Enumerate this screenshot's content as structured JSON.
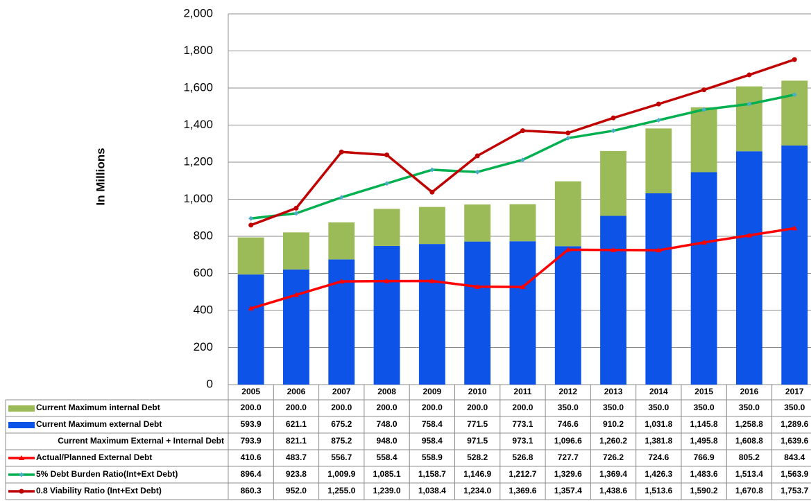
{
  "chart_data": {
    "type": "bar",
    "y_label": "In Millions",
    "categories": [
      "2005",
      "2006",
      "2007",
      "2008",
      "2009",
      "2010",
      "2011",
      "2012",
      "2013",
      "2014",
      "2015",
      "2016",
      "2017"
    ],
    "ylim": [
      0,
      2000
    ],
    "yticks": [
      0,
      200,
      400,
      600,
      800,
      {
        "value": 1000,
        "label": "1,000"
      },
      {
        "value": 1200,
        "label": "1,200"
      },
      {
        "value": 1400,
        "label": "1,400"
      },
      {
        "value": 1600,
        "label": "1,600"
      },
      {
        "value": 1800,
        "label": "1,800"
      },
      {
        "value": 2000,
        "label": "2,000"
      }
    ],
    "grid": true,
    "series": [
      {
        "name": "Current Maximum internal Debt",
        "type": "bar",
        "stack": "top",
        "color": "#9bbb59",
        "values": [
          200,
          200,
          200,
          200,
          200,
          200,
          200,
          350,
          350,
          350,
          350,
          350,
          350
        ],
        "value_labels": [
          "200.0",
          "200.0",
          "200.0",
          "200.0",
          "200.0",
          "200.0",
          "200.0",
          "350.0",
          "350.0",
          "350.0",
          "350.0",
          "350.0",
          "350.0"
        ]
      },
      {
        "name": "Current Maximum external Debt",
        "type": "bar",
        "stack": "base",
        "color": "#0d53e8",
        "values": [
          593.9,
          621.1,
          675.2,
          748.0,
          758.4,
          771.5,
          773.1,
          746.6,
          910.2,
          1031.8,
          1145.8,
          1258.8,
          1289.6
        ],
        "value_labels": [
          "593.9",
          "621.1",
          "675.2",
          "748.0",
          "758.4",
          "771.5",
          "773.1",
          "746.6",
          "910.2",
          "1,031.8",
          "1,145.8",
          "1,258.8",
          "1,289.6"
        ]
      },
      {
        "name": "Current Maximum External + Internal Debt",
        "values": [
          793.9,
          821.1,
          875.2,
          948.0,
          958.4,
          971.5,
          973.1,
          1096.6,
          1260.2,
          1381.8,
          1495.8,
          1608.8,
          1639.6
        ],
        "value_labels": [
          "793.9",
          "821.1",
          "875.2",
          "948.0",
          "958.4",
          "971.5",
          "973.1",
          "1,096.6",
          "1,260.2",
          "1,381.8",
          "1,495.8",
          "1,608.8",
          "1,639.6"
        ]
      },
      {
        "name": "Actual/Planned External Debt",
        "type": "line",
        "marker": "triangle",
        "color": "#ff0000",
        "values": [
          410.6,
          483.7,
          556.7,
          558.4,
          558.9,
          528.2,
          526.8,
          727.7,
          726.2,
          724.6,
          766.9,
          805.2,
          843.4
        ],
        "value_labels": [
          "410.6",
          "483.7",
          "556.7",
          "558.4",
          "558.9",
          "528.2",
          "526.8",
          "727.7",
          "726.2",
          "724.6",
          "766.9",
          "805.2",
          "843.4"
        ]
      },
      {
        "name": "5% Debt Burden Ratio(Int+Ext Debt)",
        "type": "line",
        "marker": "diamond",
        "color": "#00b050",
        "values": [
          896.4,
          923.8,
          1009.9,
          1085.1,
          1158.7,
          1146.9,
          1212.7,
          1329.6,
          1369.4,
          1426.3,
          1483.6,
          1513.4,
          1563.9
        ],
        "value_labels": [
          "896.4",
          "923.8",
          "1,009.9",
          "1,085.1",
          "1,158.7",
          "1,146.9",
          "1,212.7",
          "1,329.6",
          "1,369.4",
          "1,426.3",
          "1,483.6",
          "1,513.4",
          "1,563.9"
        ]
      },
      {
        "name": "0.8 Viability Ratio (Int+Ext Debt)",
        "type": "line",
        "marker": "circle",
        "color": "#c00000",
        "values": [
          860.3,
          952.0,
          1255.0,
          1239.0,
          1038.4,
          1234.0,
          1369.6,
          1357.4,
          1438.6,
          1513.6,
          1590.2,
          1670.8,
          1753.7
        ],
        "value_labels": [
          "860.3",
          "952.0",
          "1,255.0",
          "1,239.0",
          "1,038.4",
          "1,234.0",
          "1,369.6",
          "1,357.4",
          "1,438.6",
          "1,513.6",
          "1,590.2",
          "1,670.8",
          "1,753.7"
        ]
      }
    ]
  }
}
